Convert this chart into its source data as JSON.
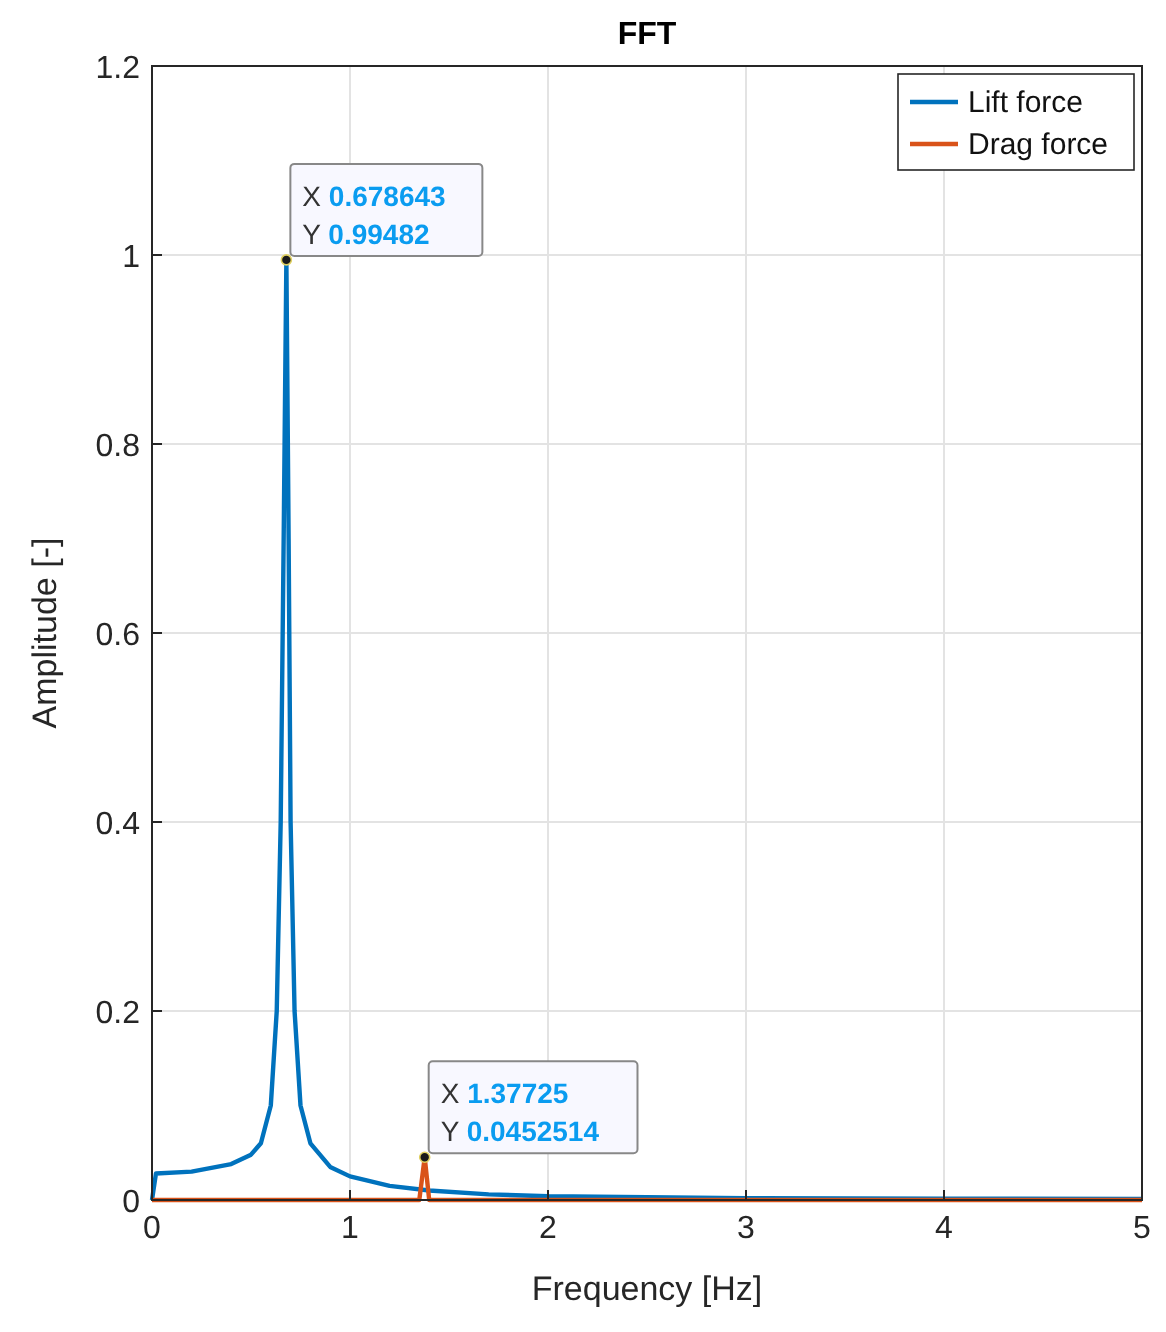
{
  "chart_data": {
    "type": "line",
    "title": "FFT",
    "xlabel": "Frequency [Hz]",
    "ylabel": "Amplitude [-]",
    "xlim": [
      0,
      5
    ],
    "xticks": [
      0,
      1,
      2,
      3,
      4,
      5
    ],
    "ylim": [
      0,
      1.2
    ],
    "yticks": [
      0,
      0.2,
      0.4,
      0.6,
      0.8,
      1,
      1.2
    ],
    "grid": true,
    "legend": "top right",
    "marker": "none",
    "line_style": "solid",
    "series": [
      {
        "name": "Lift force",
        "color": "#0072bd",
        "x": [
          0,
          0.02,
          0.2,
          0.4,
          0.5,
          0.55,
          0.6,
          0.63,
          0.65,
          0.665,
          0.678643,
          0.69,
          0.7,
          0.72,
          0.75,
          0.8,
          0.9,
          1.0,
          1.2,
          1.4,
          1.7,
          2,
          3,
          4,
          5
        ],
        "values": [
          0,
          0.028,
          0.03,
          0.038,
          0.048,
          0.06,
          0.1,
          0.2,
          0.4,
          0.7,
          0.99482,
          0.7,
          0.4,
          0.2,
          0.1,
          0.06,
          0.035,
          0.025,
          0.015,
          0.01,
          0.006,
          0.004,
          0.002,
          0.0015,
          0.001
        ]
      },
      {
        "name": "Drag force",
        "color": "#d95319",
        "x": [
          0,
          1.35,
          1.37725,
          1.4,
          5
        ],
        "values": [
          0,
          0,
          0.0452514,
          0,
          0
        ]
      }
    ],
    "annotations": [
      {
        "text": "X 0.678643\nY 0.99482",
        "x": 0.678643,
        "y": 0.99482
      },
      {
        "text": "X 1.37725\nY 0.0452514",
        "x": 1.37725,
        "y": 0.0452514
      }
    ]
  }
}
